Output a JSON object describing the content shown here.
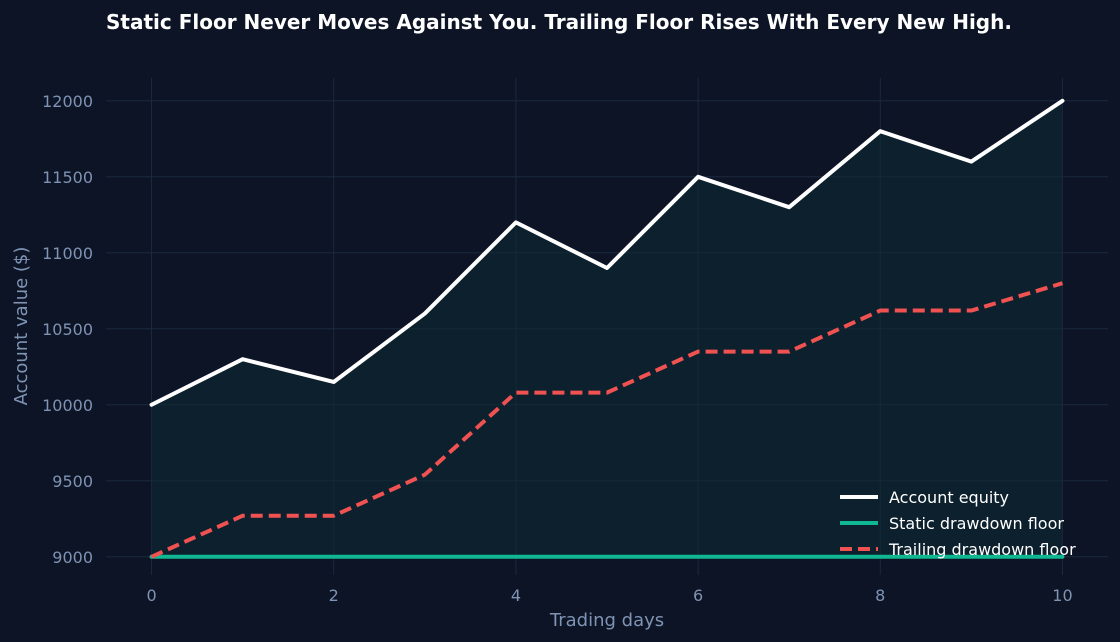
{
  "chart_data": {
    "type": "line",
    "title": "Static Floor Never Moves Against You. Trailing Floor Rises With Every New High.",
    "xlabel": "Trading days",
    "ylabel": "Account value ($)",
    "x": [
      0,
      1,
      2,
      3,
      4,
      5,
      6,
      7,
      8,
      9,
      10
    ],
    "xlim": [
      -0.5,
      10.5
    ],
    "ylim": [
      8880,
      12150
    ],
    "xticks": [
      0,
      2,
      4,
      6,
      8,
      10
    ],
    "yticks": [
      9000,
      9500,
      10000,
      10500,
      11000,
      11500,
      12000
    ],
    "grid": true,
    "legend_position": "bottom-right",
    "background": "#0c1426",
    "series": [
      {
        "name": "Account equity",
        "color": "#ffffff",
        "style": "solid",
        "values": [
          10000,
          10300,
          10150,
          10600,
          11200,
          10900,
          11500,
          11300,
          11800,
          11600,
          12000
        ]
      },
      {
        "name": "Static drawdown floor",
        "color": "#10b891",
        "style": "solid",
        "values": [
          9000,
          9000,
          9000,
          9000,
          9000,
          9000,
          9000,
          9000,
          9000,
          9000,
          9000
        ]
      },
      {
        "name": "Trailing drawdown floor",
        "color": "#f05252",
        "style": "dashed",
        "values": [
          9000,
          9270,
          9270,
          9540,
          10080,
          10080,
          10350,
          10350,
          10620,
          10620,
          10800
        ]
      }
    ]
  }
}
